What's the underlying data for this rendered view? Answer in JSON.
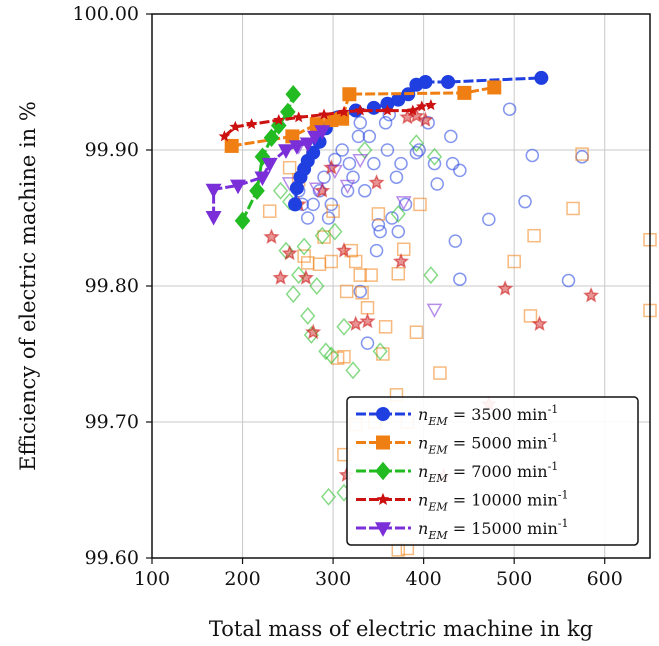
{
  "chart_data": {
    "type": "scatter",
    "xlabel": "Total mass of electric machine in kg",
    "ylabel": "Efficiency of electric machine in %",
    "xlim": [
      100,
      650
    ],
    "ylim": [
      99.6,
      100.0
    ],
    "xticks": [
      100,
      200,
      300,
      400,
      500,
      600
    ],
    "yticks": [
      "99.60",
      "99.70",
      "99.80",
      "99.90",
      "100.00"
    ],
    "grid": true,
    "legend_position": "bottom-right",
    "legend_unit": "min",
    "legend_exponent": "-1",
    "series": [
      {
        "name": "n_EM = 3500",
        "legend_label": "n_EM = 3500 min-1",
        "legend_value": "3500",
        "color": "#1f3fe0",
        "marker": "circle",
        "front": [
          [
            258,
            99.86
          ],
          [
            260,
            99.872
          ],
          [
            264,
            99.88
          ],
          [
            268,
            99.886
          ],
          [
            272,
            99.892
          ],
          [
            278,
            99.898
          ],
          [
            285,
            99.906
          ],
          [
            292,
            99.916
          ],
          [
            305,
            99.924
          ],
          [
            325,
            99.929
          ],
          [
            345,
            99.931
          ],
          [
            360,
            99.934
          ],
          [
            372,
            99.937
          ],
          [
            383,
            99.941
          ],
          [
            392,
            99.948
          ],
          [
            402,
            99.95
          ],
          [
            427,
            99.95
          ],
          [
            530,
            99.953
          ]
        ],
        "cloud": [
          [
            262,
            99.87
          ],
          [
            266,
            99.86
          ],
          [
            272,
            99.85
          ],
          [
            278,
            99.86
          ],
          [
            285,
            99.87
          ],
          [
            290,
            99.88
          ],
          [
            295,
            99.85
          ],
          [
            298,
            99.86
          ],
          [
            302,
            99.893
          ],
          [
            310,
            99.9
          ],
          [
            318,
            99.89
          ],
          [
            322,
            99.88
          ],
          [
            328,
            99.91
          ],
          [
            330,
            99.92
          ],
          [
            335,
            99.87
          ],
          [
            340,
            99.91
          ],
          [
            345,
            99.89
          ],
          [
            350,
            99.845
          ],
          [
            352,
            99.84
          ],
          [
            358,
            99.92
          ],
          [
            360,
            99.9
          ],
          [
            365,
            99.85
          ],
          [
            370,
            99.88
          ],
          [
            375,
            99.89
          ],
          [
            380,
            99.86
          ],
          [
            395,
            99.9
          ],
          [
            405,
            99.92
          ],
          [
            412,
            99.89
          ],
          [
            415,
            99.875
          ],
          [
            430,
            99.91
          ],
          [
            432,
            99.89
          ],
          [
            435,
            99.833
          ],
          [
            440,
            99.885
          ],
          [
            472,
            99.849
          ],
          [
            495,
            99.93
          ],
          [
            512,
            99.862
          ],
          [
            520,
            99.896
          ],
          [
            560,
            99.804
          ],
          [
            575,
            99.895
          ],
          [
            330,
            99.796
          ],
          [
            338,
            99.758
          ],
          [
            348,
            99.826
          ],
          [
            372,
            99.84
          ],
          [
            392,
            99.898
          ],
          [
            440,
            99.805
          ],
          [
            362,
            99.926
          ],
          [
            316,
            99.87
          ]
        ]
      },
      {
        "name": "n_EM = 5000",
        "legend_label": "n_EM = 5000 min-1",
        "legend_value": "5000",
        "color": "#f07f13",
        "marker": "square",
        "front": [
          [
            188,
            99.903
          ],
          [
            255,
            99.91
          ],
          [
            282,
            99.919
          ],
          [
            298,
            99.922
          ],
          [
            310,
            99.923
          ],
          [
            318,
            99.941
          ],
          [
            445,
            99.942
          ],
          [
            478,
            99.946
          ]
        ],
        "cloud": [
          [
            230,
            99.855
          ],
          [
            252,
            99.887
          ],
          [
            262,
            99.878
          ],
          [
            268,
            99.822
          ],
          [
            272,
            99.817
          ],
          [
            285,
            99.816
          ],
          [
            290,
            99.836
          ],
          [
            298,
            99.818
          ],
          [
            300,
            99.855
          ],
          [
            305,
            99.747
          ],
          [
            312,
            99.748
          ],
          [
            315,
            99.796
          ],
          [
            320,
            99.826
          ],
          [
            325,
            99.818
          ],
          [
            330,
            99.808
          ],
          [
            332,
            99.795
          ],
          [
            338,
            99.784
          ],
          [
            342,
            99.808
          ],
          [
            350,
            99.853
          ],
          [
            355,
            99.75
          ],
          [
            358,
            99.77
          ],
          [
            370,
            99.72
          ],
          [
            372,
            99.809
          ],
          [
            378,
            99.827
          ],
          [
            382,
            99.7
          ],
          [
            392,
            99.766
          ],
          [
            396,
            99.86
          ],
          [
            418,
            99.736
          ],
          [
            500,
            99.818
          ],
          [
            518,
            99.778
          ],
          [
            522,
            99.837
          ],
          [
            565,
            99.857
          ],
          [
            575,
            99.897
          ],
          [
            650,
            99.834
          ],
          [
            650,
            99.782
          ],
          [
            372,
            99.606
          ],
          [
            382,
            99.607
          ],
          [
            312,
            99.676
          ],
          [
            325,
            99.698
          ],
          [
            346,
            99.7
          ]
        ]
      },
      {
        "name": "n_EM = 7000",
        "legend_label": "n_EM = 7000 min-1",
        "legend_value": "7000",
        "color": "#22bb22",
        "marker": "diamond",
        "front": [
          [
            200,
            99.848
          ],
          [
            216,
            99.87
          ],
          [
            222,
            99.895
          ],
          [
            232,
            99.909
          ],
          [
            240,
            99.918
          ],
          [
            250,
            99.928
          ],
          [
            256,
            99.941
          ]
        ],
        "cloud": [
          [
            242,
            99.87
          ],
          [
            248,
            99.826
          ],
          [
            252,
            99.862
          ],
          [
            256,
            99.794
          ],
          [
            262,
            99.808
          ],
          [
            268,
            99.829
          ],
          [
            272,
            99.778
          ],
          [
            276,
            99.764
          ],
          [
            282,
            99.8
          ],
          [
            288,
            99.837
          ],
          [
            292,
            99.752
          ],
          [
            298,
            99.749
          ],
          [
            302,
            99.84
          ],
          [
            312,
            99.77
          ],
          [
            322,
            99.738
          ],
          [
            335,
            99.9
          ],
          [
            352,
            99.752
          ],
          [
            372,
            99.853
          ],
          [
            392,
            99.905
          ],
          [
            408,
            99.808
          ],
          [
            412,
            99.895
          ],
          [
            295,
            99.645
          ],
          [
            312,
            99.648
          ]
        ]
      },
      {
        "name": "n_EM = 10000",
        "legend_label": "n_EM = 10000 min-1",
        "legend_value": "10000",
        "color": "#cc1111",
        "marker": "star",
        "front": [
          [
            180,
            99.91
          ],
          [
            192,
            99.917
          ],
          [
            210,
            99.919
          ],
          [
            240,
            99.922
          ],
          [
            262,
            99.924
          ],
          [
            290,
            99.926
          ],
          [
            312,
            99.928
          ],
          [
            330,
            99.929
          ],
          [
            360,
            99.929
          ],
          [
            388,
            99.929
          ],
          [
            398,
            99.932
          ],
          [
            408,
            99.933
          ]
        ],
        "cloud": [
          [
            232,
            99.836
          ],
          [
            242,
            99.806
          ],
          [
            252,
            99.824
          ],
          [
            262,
            99.86
          ],
          [
            270,
            99.806
          ],
          [
            278,
            99.766
          ],
          [
            288,
            99.87
          ],
          [
            298,
            99.887
          ],
          [
            312,
            99.826
          ],
          [
            325,
            99.772
          ],
          [
            338,
            99.774
          ],
          [
            348,
            99.876
          ],
          [
            375,
            99.818
          ],
          [
            382,
            99.924
          ],
          [
            392,
            99.925
          ],
          [
            402,
            99.922
          ],
          [
            490,
            99.798
          ],
          [
            528,
            99.772
          ],
          [
            585,
            99.793
          ],
          [
            315,
            99.661
          ],
          [
            422,
            99.66
          ],
          [
            472,
            99.713
          ]
        ]
      },
      {
        "name": "n_EM = 15000",
        "legend_label": "n_EM = 15000 min-1",
        "legend_value": "15000",
        "color": "#7b2fd9",
        "marker": "triangle-down",
        "front": [
          [
            168,
            99.851
          ],
          [
            168,
            99.871
          ],
          [
            195,
            99.874
          ],
          [
            222,
            99.88
          ],
          [
            230,
            99.89
          ],
          [
            248,
            99.9
          ],
          [
            260,
            99.903
          ],
          [
            272,
            99.905
          ],
          [
            280,
            99.91
          ],
          [
            288,
            99.914
          ]
        ],
        "cloud": [
          [
            252,
            99.876
          ],
          [
            262,
            99.903
          ],
          [
            282,
            99.872
          ],
          [
            302,
            99.885
          ],
          [
            316,
            99.874
          ],
          [
            330,
            99.893
          ],
          [
            378,
            99.862
          ],
          [
            412,
            99.783
          ]
        ]
      }
    ]
  }
}
